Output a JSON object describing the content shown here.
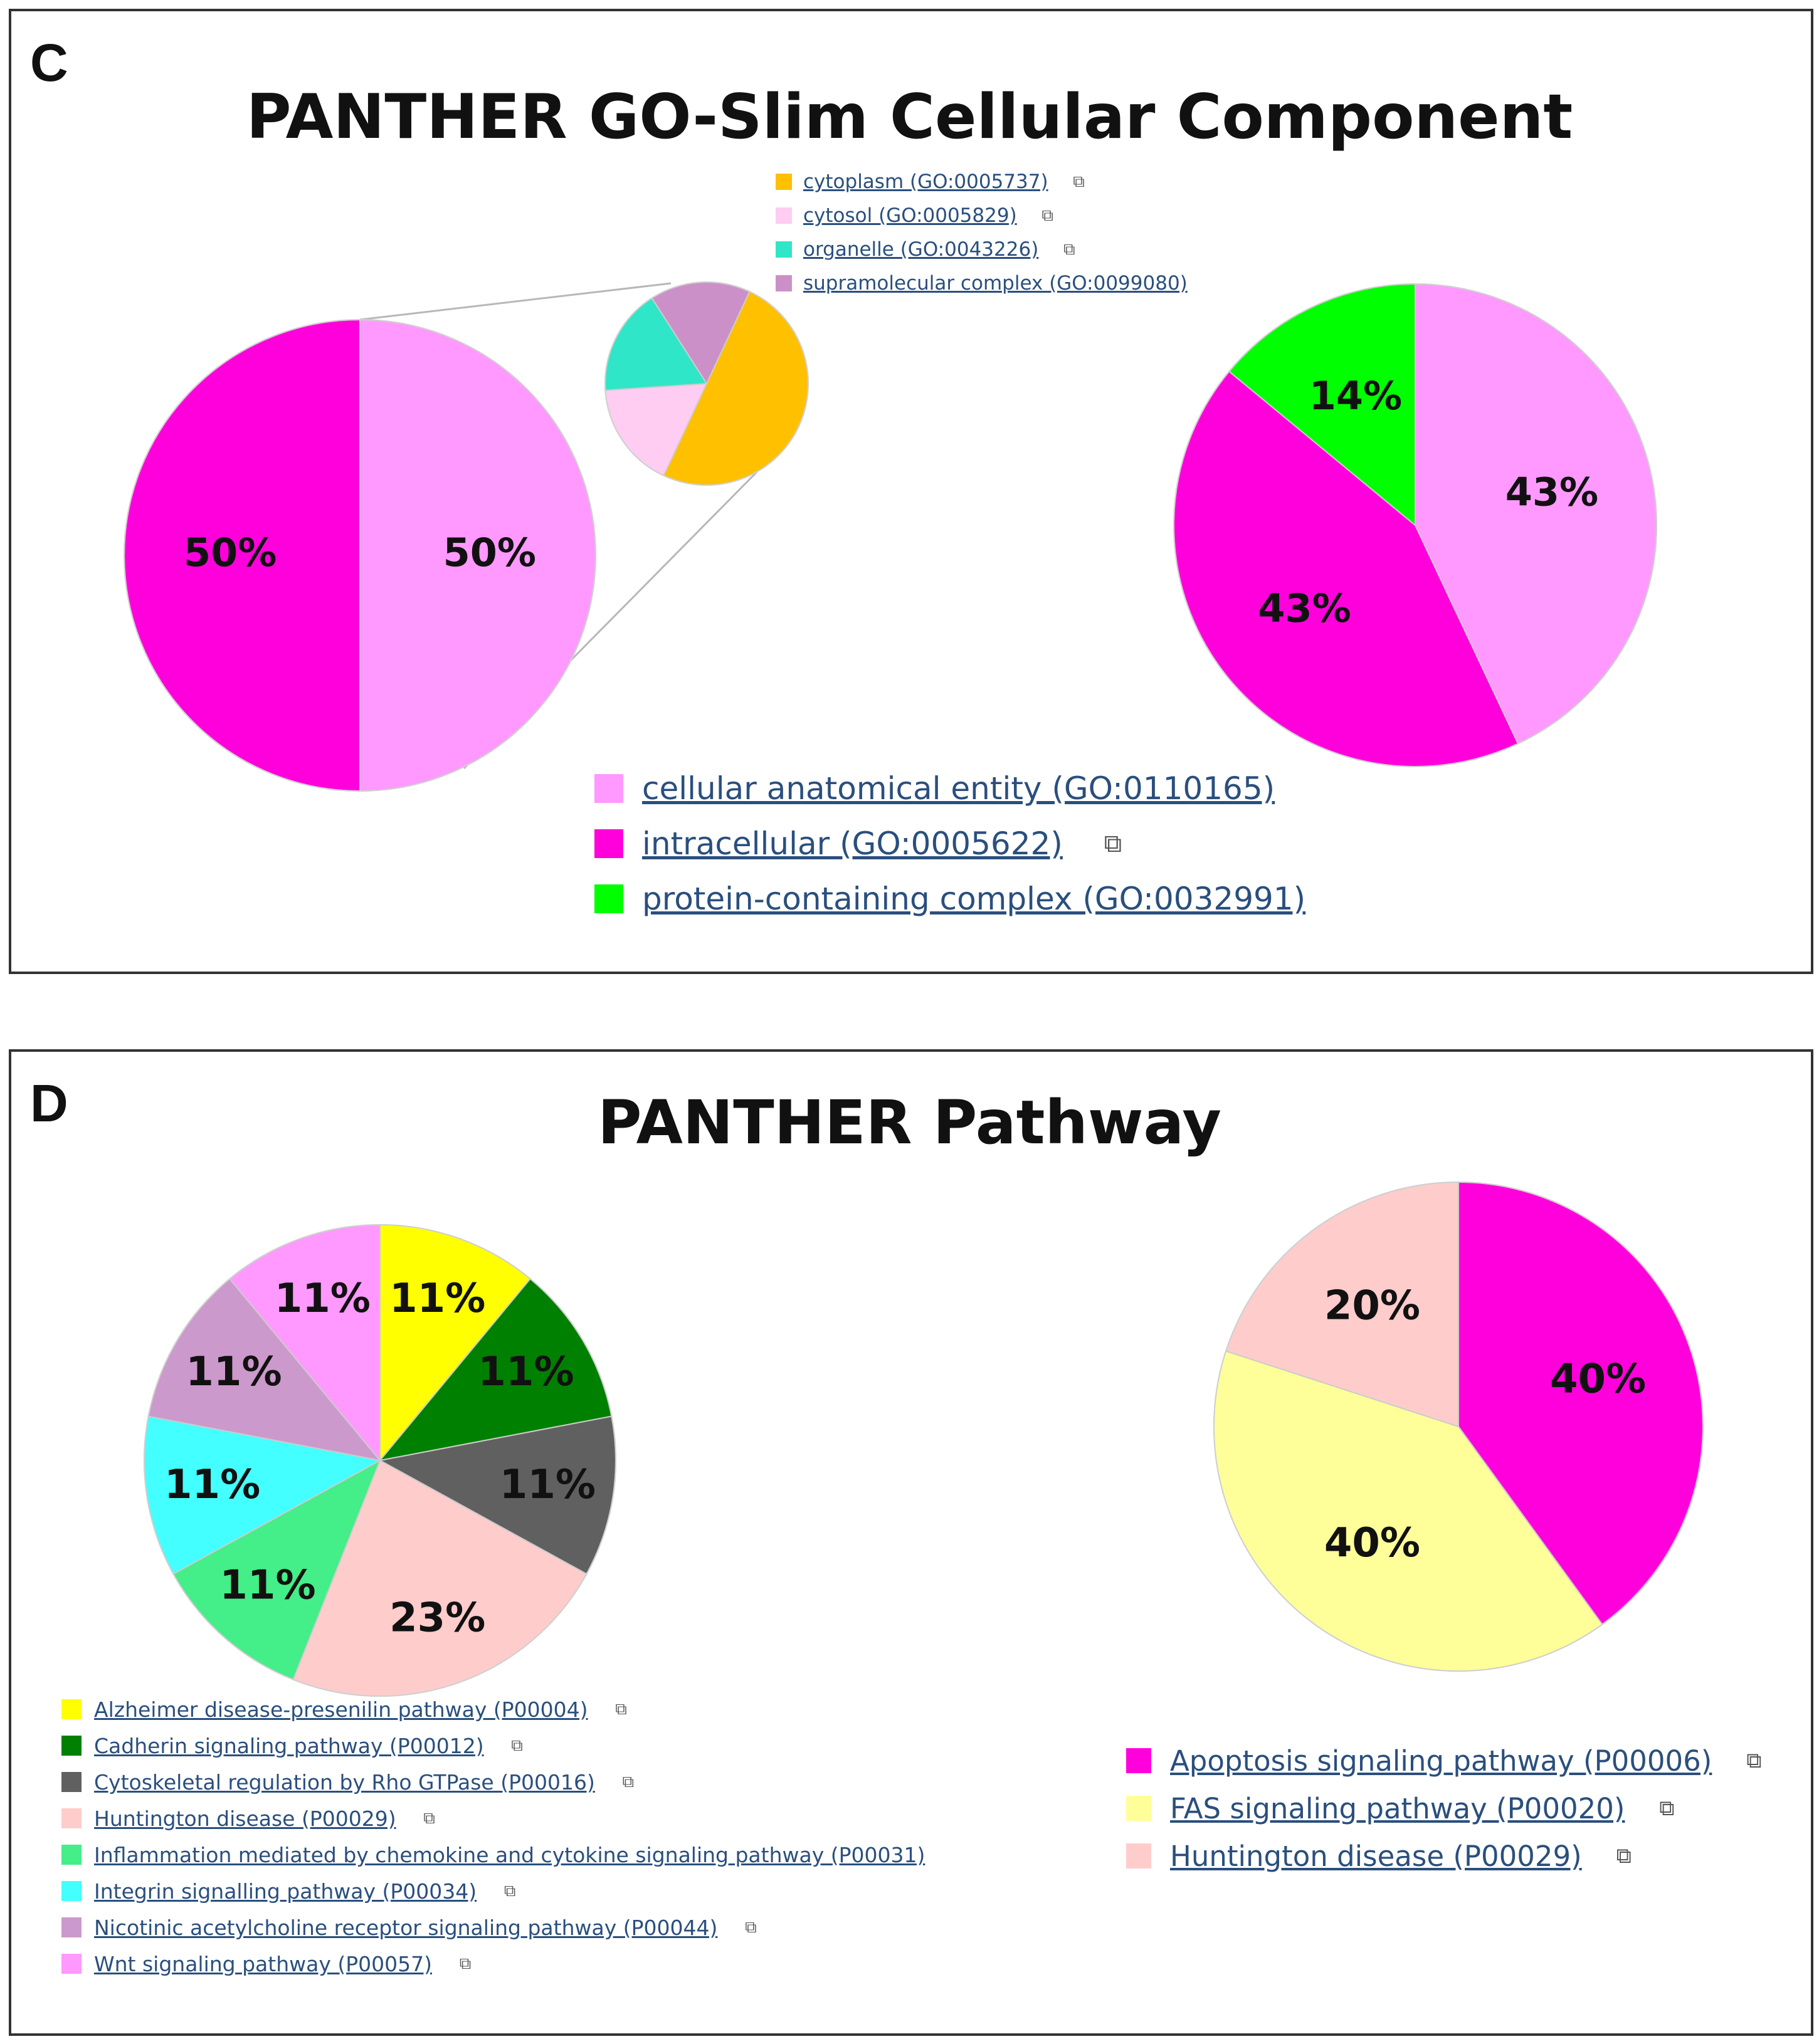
{
  "panel_c": {
    "letter": "C",
    "title": "PANTHER GO-Slim Cellular Component",
    "ext_icon": "external-link-icon"
  },
  "panel_d": {
    "letter": "D",
    "title": "PANTHER Pathway",
    "ext_icon": "external-link-icon"
  },
  "chart_data": [
    {
      "type": "pie",
      "name": "cc-left-pie",
      "title": "PANTHER GO-Slim Cellular Component",
      "slices": [
        {
          "label": "cellular anatomical entity (GO:0110165)",
          "value": 50,
          "display": "50%",
          "color": "#ff99ff"
        },
        {
          "label": "intracellular (GO:0005622)",
          "value": 50,
          "display": "50%",
          "color": "#ff00dd"
        }
      ],
      "start_angle": 0,
      "legend_ref": "cc_main_legend"
    },
    {
      "type": "pie",
      "name": "cc-subset-pie",
      "title": "",
      "slices": [
        {
          "label": "cytoplasm (GO:0005737)",
          "value": 50,
          "display": "",
          "color": "#ffc000"
        },
        {
          "label": "cytosol (GO:0005829)",
          "value": 17,
          "display": "",
          "color": "#ffccf2"
        },
        {
          "label": "organelle (GO:0043226)",
          "value": 17,
          "display": "",
          "color": "#2fe6c8"
        },
        {
          "label": "supramolecular complex (GO:0099080)",
          "value": 16,
          "display": "",
          "color": "#cc90c8"
        }
      ],
      "start_angle": 25,
      "legend_ref": "cc_subset_legend"
    },
    {
      "type": "pie",
      "name": "cc-right-pie",
      "title": "",
      "slices": [
        {
          "label": "cellular anatomical entity (GO:0110165)",
          "value": 43,
          "display": "43%",
          "color": "#ff99ff"
        },
        {
          "label": "intracellular (GO:0005622)",
          "value": 43,
          "display": "43%",
          "color": "#ff00dd"
        },
        {
          "label": "protein-containing complex (GO:0032991)",
          "value": 14,
          "display": "14%",
          "color": "#00ff00"
        }
      ],
      "start_angle": 0,
      "legend_ref": "cc_main_legend"
    },
    {
      "type": "pie",
      "name": "pathway-left-pie",
      "title": "PANTHER Pathway",
      "slices": [
        {
          "label": "Alzheimer disease-presenilin pathway (P00004)",
          "value": 11,
          "display": "11%",
          "color": "#ffff00"
        },
        {
          "label": "Cadherin signaling pathway (P00012)",
          "value": 11,
          "display": "11%",
          "color": "#008000"
        },
        {
          "label": "Cytoskeletal regulation by Rho GTPase (P00016)",
          "value": 11,
          "display": "11%",
          "color": "#606060"
        },
        {
          "label": "Huntington disease (P00029)",
          "value": 23,
          "display": "23%",
          "color": "#ffcccc"
        },
        {
          "label": "Inflammation mediated by chemokine and cytokine signaling pathway (P00031)",
          "value": 11,
          "display": "11%",
          "color": "#44ee88"
        },
        {
          "label": "Integrin signalling pathway (P00034)",
          "value": 11,
          "display": "11%",
          "color": "#44ffff"
        },
        {
          "label": "Nicotinic acetylcholine receptor signaling pathway (P00044)",
          "value": 11,
          "display": "11%",
          "color": "#cc99cc"
        },
        {
          "label": "Wnt signaling pathway (P00057)",
          "value": 11,
          "display": "11%",
          "color": "#ff99ff"
        }
      ],
      "start_angle": 0,
      "legend_ref": "pathway_left_legend"
    },
    {
      "type": "pie",
      "name": "pathway-right-pie",
      "title": "",
      "slices": [
        {
          "label": "Apoptosis signaling pathway (P00006)",
          "value": 40,
          "display": "40%",
          "color": "#ff00dd"
        },
        {
          "label": "FAS signaling pathway (P00020)",
          "value": 40,
          "display": "40%",
          "color": "#ffff99"
        },
        {
          "label": "Huntington disease (P00029)",
          "value": 20,
          "display": "20%",
          "color": "#ffcccc"
        }
      ],
      "start_angle": 0,
      "legend_ref": "pathway_right_legend"
    }
  ],
  "legends": {
    "cc_subset_legend": [
      {
        "label": "cytoplasm (GO:0005737)",
        "color": "#ffc000",
        "has_icon": true
      },
      {
        "label": "cytosol (GO:0005829)",
        "color": "#ffccf2",
        "has_icon": true
      },
      {
        "label": "organelle (GO:0043226)",
        "color": "#2fe6c8",
        "has_icon": true
      },
      {
        "label": "supramolecular complex (GO:0099080)",
        "color": "#cc90c8",
        "has_icon": false
      }
    ],
    "cc_main_legend": [
      {
        "label": "cellular anatomical entity (GO:0110165)",
        "color": "#ff99ff",
        "has_icon": false
      },
      {
        "label": "intracellular (GO:0005622)",
        "color": "#ff00dd",
        "has_icon": true
      },
      {
        "label": "protein-containing complex (GO:0032991)",
        "color": "#00ff00",
        "has_icon": false
      }
    ],
    "pathway_left_legend": [
      {
        "label": "Alzheimer disease-presenilin pathway (P00004)",
        "color": "#ffff00",
        "has_icon": true
      },
      {
        "label": "Cadherin signaling pathway (P00012)",
        "color": "#008000",
        "has_icon": true
      },
      {
        "label": "Cytoskeletal regulation by Rho GTPase (P00016)",
        "color": "#606060",
        "has_icon": true
      },
      {
        "label": "Huntington disease (P00029)",
        "color": "#ffcccc",
        "has_icon": true
      },
      {
        "label": "Inflammation mediated by chemokine and cytokine signaling pathway (P00031)",
        "color": "#44ee88",
        "has_icon": false
      },
      {
        "label": "Integrin signalling pathway (P00034)",
        "color": "#44ffff",
        "has_icon": true
      },
      {
        "label": "Nicotinic acetylcholine receptor signaling pathway (P00044)",
        "color": "#cc99cc",
        "has_icon": true
      },
      {
        "label": "Wnt signaling pathway (P00057)",
        "color": "#ff99ff",
        "has_icon": true
      }
    ],
    "pathway_right_legend": [
      {
        "label": "Apoptosis signaling pathway (P00006)",
        "color": "#ff00dd",
        "has_icon": true
      },
      {
        "label": "FAS signaling pathway (P00020)",
        "color": "#ffff99",
        "has_icon": true
      },
      {
        "label": "Huntington disease (P00029)",
        "color": "#ffcccc",
        "has_icon": true
      }
    ]
  }
}
